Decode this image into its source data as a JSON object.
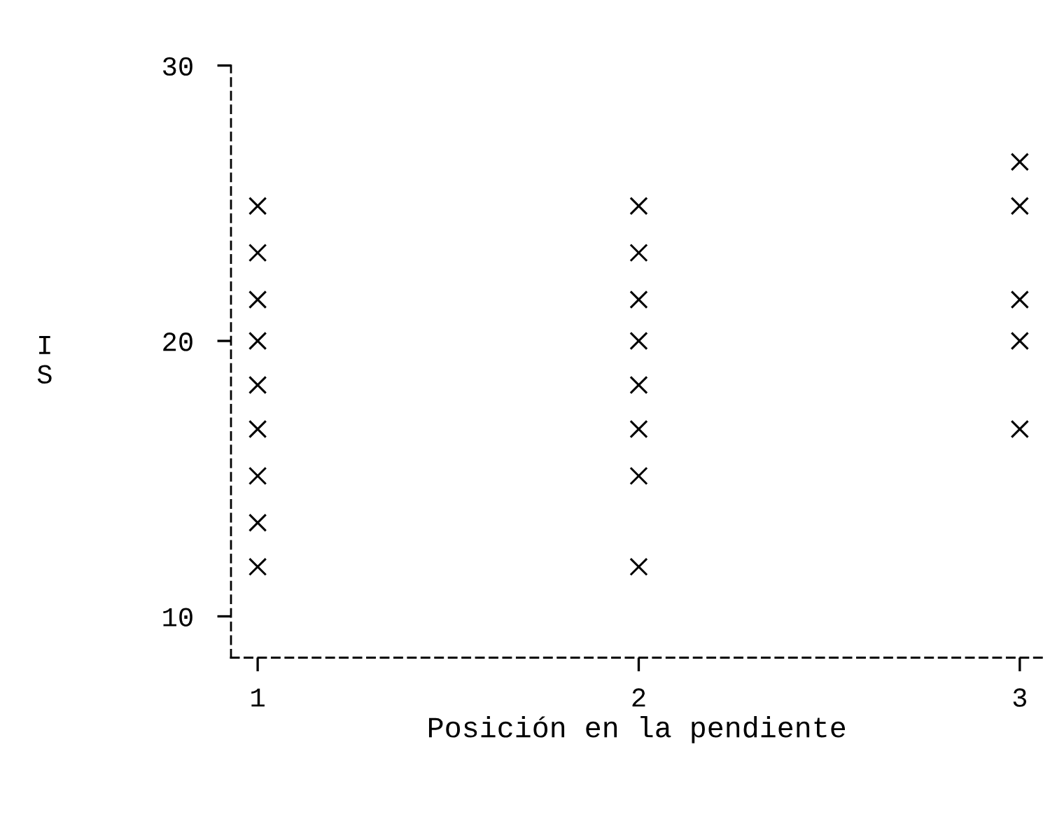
{
  "chart_data": {
    "type": "scatter",
    "xlabel": "Posición en la pendiente",
    "ylabel": "I\nS",
    "x": [
      1,
      1,
      1,
      1,
      1,
      1,
      1,
      1,
      1,
      2,
      2,
      2,
      2,
      2,
      2,
      2,
      2,
      3,
      3,
      3,
      3,
      3
    ],
    "values": [
      24.9,
      23.2,
      21.5,
      20.0,
      18.4,
      16.8,
      15.1,
      13.4,
      11.8,
      24.9,
      23.2,
      21.5,
      20.0,
      18.4,
      16.8,
      15.1,
      11.8,
      26.5,
      24.9,
      21.5,
      20.0,
      16.8
    ],
    "color": "#000000",
    "marker": "cross",
    "xlim": [
      0.93,
      3.06
    ],
    "ylim": [
      8.5,
      30
    ],
    "xticks": [
      1,
      2,
      3
    ],
    "yticks": [
      10,
      20,
      30
    ],
    "line_style": "dashed",
    "grid": false
  }
}
